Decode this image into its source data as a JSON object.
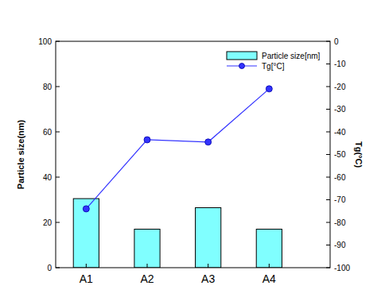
{
  "chart_data": {
    "type": "bar",
    "categories": [
      "A1",
      "A2",
      "A3",
      "A4"
    ],
    "series": [
      {
        "name": "Particle size[nm]",
        "type": "bar",
        "color": "#80ffff",
        "values": [
          30.5,
          17,
          26.5,
          17
        ]
      },
      {
        "name": "Tg[°C]",
        "type": "line",
        "color": "#3333ff",
        "marker": "circle",
        "axis": "y2",
        "values": [
          -74,
          -43.5,
          -44.5,
          -21
        ]
      }
    ],
    "ylabel": "Particle size(nm)",
    "y2label": "Tg(°C)",
    "ylim": [
      0,
      100
    ],
    "yticks": [
      0,
      20,
      40,
      60,
      80,
      100
    ],
    "y2lim": [
      -100,
      0
    ],
    "y2ticks": [
      -100,
      -90,
      -80,
      -70,
      -60,
      -50,
      -40,
      -30,
      -20,
      -10,
      0
    ],
    "legend": "upper right"
  }
}
